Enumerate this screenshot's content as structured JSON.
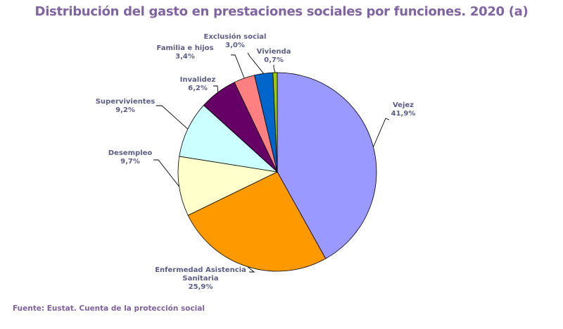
{
  "chart_data": {
    "type": "pie",
    "title": "Distribución del gasto en prestaciones sociales por funciones. 2020 (a)",
    "source": "Fuente: Eustat. Cuenta de la protección social",
    "slices": [
      {
        "name": "Vejez",
        "value": 41.9,
        "label": "41,9%",
        "color": "#9999ff"
      },
      {
        "name": "Enfermedad Asistencia Sanitaria",
        "value": 25.9,
        "label": "25,9%",
        "color": "#ff9900"
      },
      {
        "name": "Desempleo",
        "value": 9.7,
        "label": "9,7%",
        "color": "#ffffcc"
      },
      {
        "name": "Supervivientes",
        "value": 9.2,
        "label": "9,2%",
        "color": "#ccffff"
      },
      {
        "name": "Invalidez",
        "value": 6.2,
        "label": "6,2%",
        "color": "#660066"
      },
      {
        "name": "Familia e hijos",
        "value": 3.4,
        "label": "3,4%",
        "color": "#ff8080"
      },
      {
        "name": "Exclusión social",
        "value": 3.0,
        "label": "3,0%",
        "color": "#0066cc"
      },
      {
        "name": "Vivienda",
        "value": 0.7,
        "label": "0,7%",
        "color": "#99cc00"
      }
    ]
  }
}
